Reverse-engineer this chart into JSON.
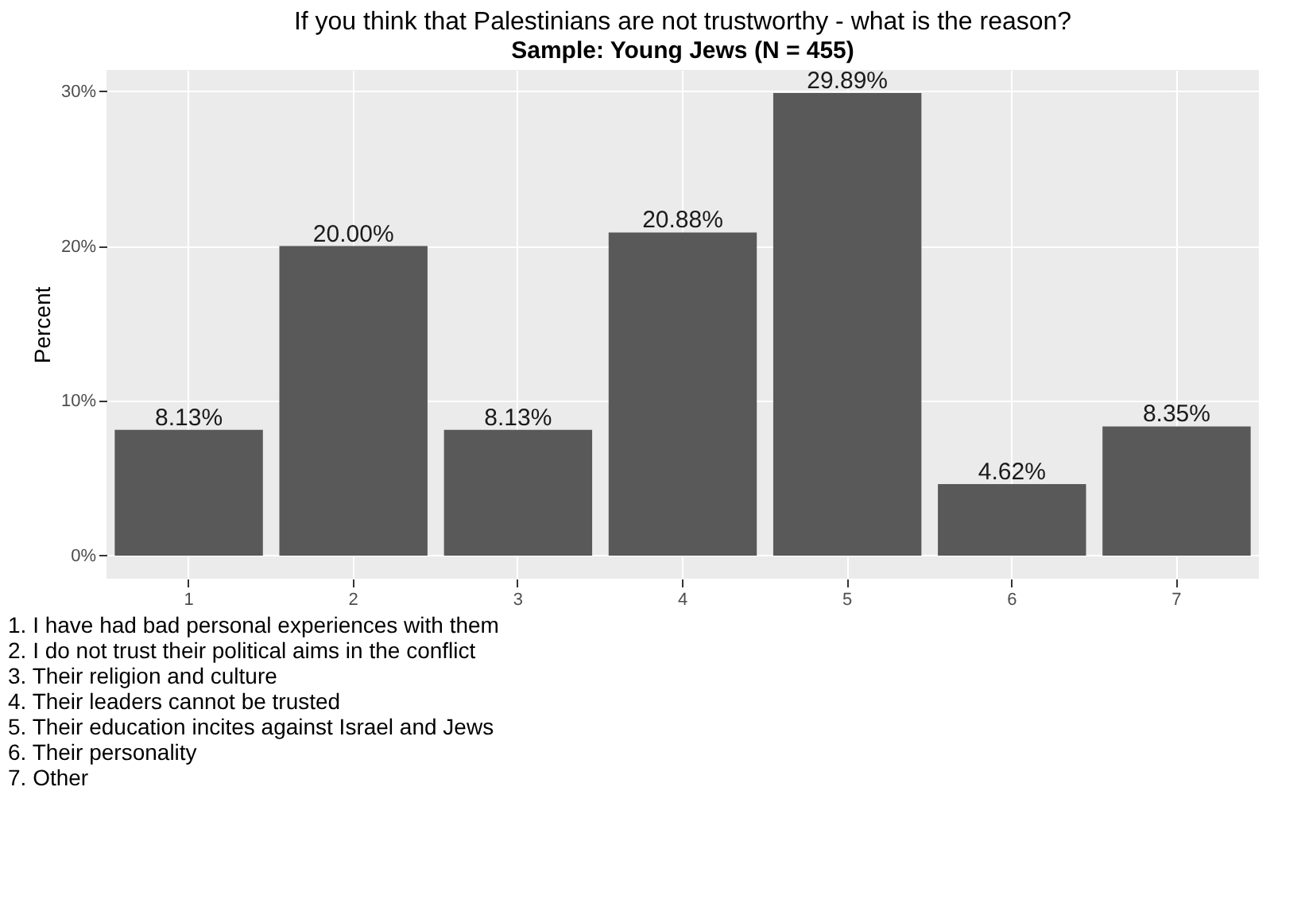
{
  "chart_data": {
    "type": "bar",
    "title": "If you think that Palestinians are not trustworthy - what is the reason?",
    "subtitle": "Sample: Young Jews (N = 455)",
    "ylabel": "Percent",
    "categories": [
      "1",
      "2",
      "3",
      "4",
      "5",
      "6",
      "7"
    ],
    "values": [
      8.13,
      20.0,
      8.13,
      20.88,
      29.89,
      4.62,
      8.35
    ],
    "value_labels": [
      "8.13%",
      "20.00%",
      "8.13%",
      "20.88%",
      "29.89%",
      "4.62%",
      "8.35%"
    ],
    "color": "#595959",
    "ylim": [
      -1.49,
      31.38
    ],
    "yticks": [
      {
        "value": 0,
        "label": "0%"
      },
      {
        "value": 10,
        "label": "10%"
      },
      {
        "value": 20,
        "label": "20%"
      },
      {
        "value": 30,
        "label": "30%"
      }
    ],
    "grid": true,
    "annotations": [
      "1. I have had bad personal experiences with them",
      "2. I do not trust their political aims in the conflict",
      "3. Their religion and culture",
      "4. Their leaders cannot be trusted",
      "5. Their education incites against Israel and Jews",
      "6. Their personality",
      "7. Other"
    ]
  }
}
